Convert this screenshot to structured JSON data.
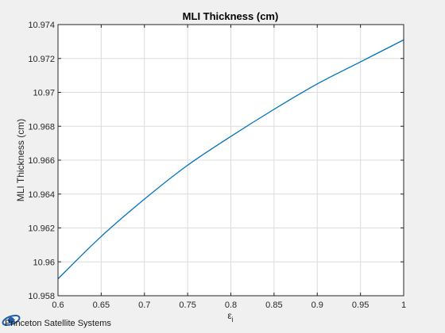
{
  "chart_data": {
    "type": "line",
    "title": "MLI Thickness (cm)",
    "xlabel": "ε",
    "xlabel_subscript": "i",
    "ylabel": "MLI Thickness (cm)",
    "xlim": [
      0.6,
      1.0
    ],
    "ylim": [
      10.958,
      10.974
    ],
    "xticks": [
      0.6,
      0.65,
      0.7,
      0.75,
      0.8,
      0.85,
      0.9,
      0.95,
      1.0
    ],
    "xtick_labels": [
      "0.6",
      "0.65",
      "0.7",
      "0.75",
      "0.8",
      "0.85",
      "0.9",
      "0.95",
      "1"
    ],
    "yticks": [
      10.958,
      10.96,
      10.962,
      10.964,
      10.966,
      10.968,
      10.97,
      10.972,
      10.974
    ],
    "ytick_labels": [
      "10.958",
      "10.96",
      "10.962",
      "10.964",
      "10.966",
      "10.968",
      "10.97",
      "10.972",
      "10.974"
    ],
    "grid": true,
    "series": [
      {
        "color": "#0072bd",
        "x": [
          0.6,
          0.65,
          0.7,
          0.75,
          0.8,
          0.85,
          0.9,
          0.95,
          1.0
        ],
        "y": [
          10.959,
          10.9615,
          10.9637,
          10.9657,
          10.9674,
          10.969,
          10.9705,
          10.9718,
          10.9731
        ]
      }
    ]
  },
  "logo": {
    "text": "Princeton Satellite Systems",
    "color": "#1f5ea8"
  }
}
